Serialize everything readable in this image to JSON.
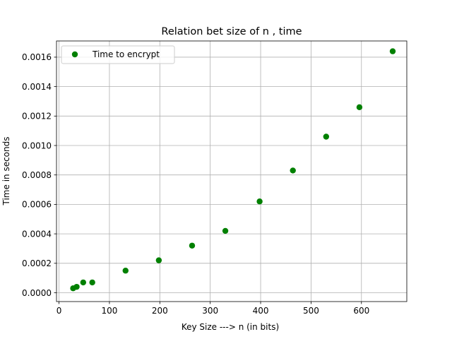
{
  "chart_data": {
    "type": "scatter",
    "title": "Relation bet size of n , time",
    "xlabel": "Key Size ---> n (in bits)",
    "ylabel": "Time in seconds",
    "xlim": [
      -5,
      690
    ],
    "ylim": [
      -6e-05,
      0.00171
    ],
    "xticks": [
      0,
      100,
      200,
      300,
      400,
      500,
      600
    ],
    "xtick_labels": [
      "0",
      "100",
      "200",
      "300",
      "400",
      "500",
      "600"
    ],
    "yticks": [
      0.0,
      0.0002,
      0.0004,
      0.0006,
      0.0008,
      0.001,
      0.0012,
      0.0014,
      0.0016
    ],
    "ytick_labels": [
      "0.0000",
      "0.0002",
      "0.0004",
      "0.0006",
      "0.0008",
      "0.0010",
      "0.0012",
      "0.0014",
      "0.0016"
    ],
    "grid": true,
    "legend_position": "top-left",
    "series": [
      {
        "name": "Time to encrypt",
        "color": "#008000",
        "x": [
          28,
          35,
          48,
          66,
          132,
          198,
          264,
          330,
          398,
          464,
          530,
          596,
          662
        ],
        "y": [
          3e-05,
          4e-05,
          7e-05,
          7e-05,
          0.00015,
          0.00022,
          0.00032,
          0.00042,
          0.00062,
          0.00083,
          0.00106,
          0.00126,
          0.00164
        ]
      }
    ]
  }
}
